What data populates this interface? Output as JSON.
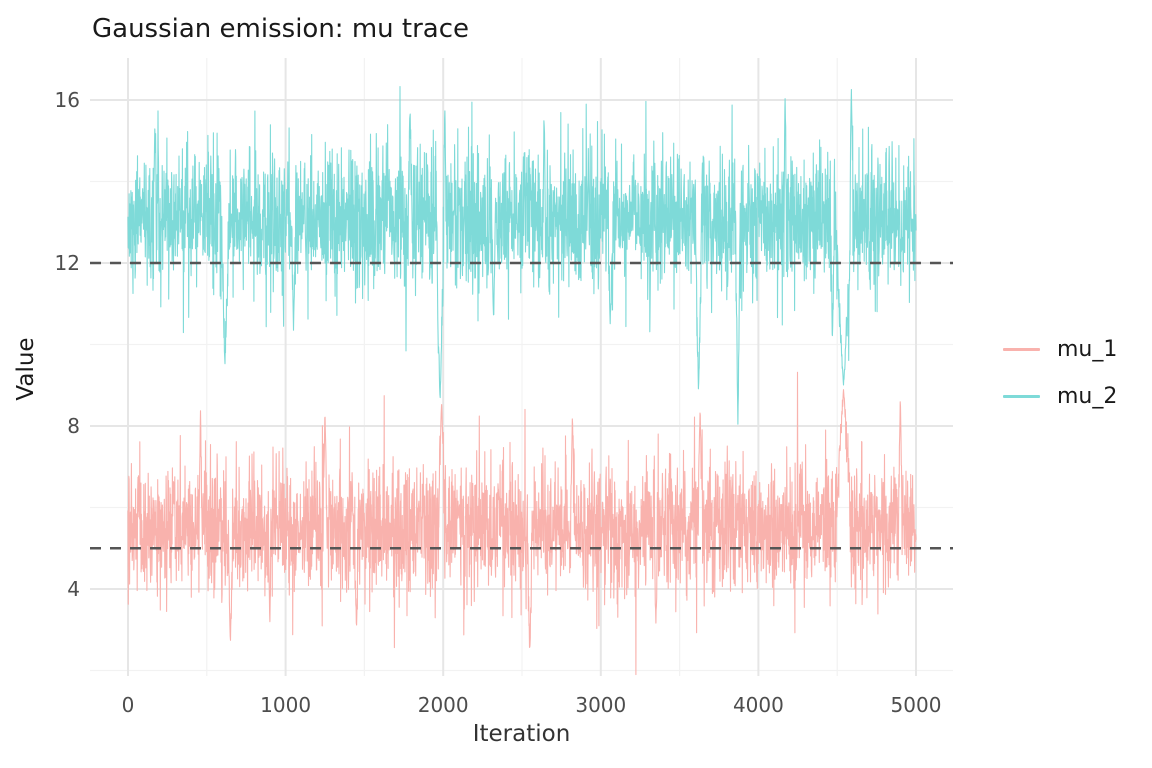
{
  "figure": {
    "background": "#FFFFFF"
  },
  "chart_data": {
    "type": "line",
    "title": "Gaussian emission: mu trace",
    "xlabel": "Iteration",
    "ylabel": "Value",
    "x_range": [
      0,
      5000
    ],
    "n_iterations": 5000,
    "x_ticks": [
      0,
      1000,
      2000,
      3000,
      4000,
      5000
    ],
    "x_minor_ticks": [
      500,
      1500,
      2500,
      3500,
      4500
    ],
    "y_ticks": [
      4,
      8,
      12,
      16
    ],
    "y_minor_ticks": [
      2,
      6,
      10,
      14
    ],
    "y_domain": [
      1.9,
      17.05
    ],
    "grid": true,
    "legend_position": "right",
    "reference_lines": [
      {
        "y": 5,
        "style": "dashed",
        "color": "#555555"
      },
      {
        "y": 12,
        "style": "dashed",
        "color": "#555555"
      }
    ],
    "series": [
      {
        "name": "mu_1",
        "color": "#F9B2AD",
        "mean": 5.5,
        "sd": 0.75,
        "observed_min": 2.4,
        "observed_max": 9.0,
        "excursions": [
          {
            "iter": 460,
            "value": 8.4,
            "width": 10
          },
          {
            "iter": 650,
            "value": 2.7,
            "width": 15
          },
          {
            "iter": 900,
            "value": 3.1,
            "width": 8
          },
          {
            "iter": 1250,
            "value": 8.3,
            "width": 12
          },
          {
            "iter": 1450,
            "value": 3.0,
            "width": 10
          },
          {
            "iter": 1990,
            "value": 8.6,
            "width": 20
          },
          {
            "iter": 2550,
            "value": 2.4,
            "width": 15
          },
          {
            "iter": 2820,
            "value": 8.3,
            "width": 12
          },
          {
            "iter": 3350,
            "value": 3.0,
            "width": 8
          },
          {
            "iter": 3630,
            "value": 8.4,
            "width": 14
          },
          {
            "iter": 4540,
            "value": 8.9,
            "width": 45
          },
          {
            "iter": 4900,
            "value": 8.6,
            "width": 12
          }
        ]
      },
      {
        "name": "mu_2",
        "color": "#7EDAD8",
        "mean": 13.1,
        "sd": 0.85,
        "observed_min": 7.9,
        "observed_max": 16.3,
        "excursions": [
          {
            "iter": 170,
            "value": 15.3,
            "width": 8
          },
          {
            "iter": 615,
            "value": 9.5,
            "width": 22
          },
          {
            "iter": 1050,
            "value": 10.3,
            "width": 12
          },
          {
            "iter": 1790,
            "value": 15.8,
            "width": 10
          },
          {
            "iter": 1980,
            "value": 8.6,
            "width": 25
          },
          {
            "iter": 2010,
            "value": 15.9,
            "width": 8
          },
          {
            "iter": 2320,
            "value": 10.6,
            "width": 12
          },
          {
            "iter": 2640,
            "value": 15.6,
            "width": 8
          },
          {
            "iter": 3060,
            "value": 10.4,
            "width": 12
          },
          {
            "iter": 3620,
            "value": 8.8,
            "width": 18
          },
          {
            "iter": 3870,
            "value": 8.0,
            "width": 14
          },
          {
            "iter": 4170,
            "value": 16.1,
            "width": 8
          },
          {
            "iter": 4470,
            "value": 10.2,
            "width": 12
          },
          {
            "iter": 4540,
            "value": 9.0,
            "width": 50
          },
          {
            "iter": 4590,
            "value": 16.3,
            "width": 10
          }
        ]
      }
    ],
    "style": {
      "title_color": "#1A1A1A",
      "axis_label_color": "#333333",
      "tick_label_color": "#4D4D4D",
      "grid_major_color": "#E6E6E6",
      "grid_minor_color": "#F2F2F2",
      "panel_background": "#FFFFFF",
      "trace_stroke_width": 1.1
    },
    "render": {
      "n_points": 3000,
      "seed": 7
    }
  }
}
